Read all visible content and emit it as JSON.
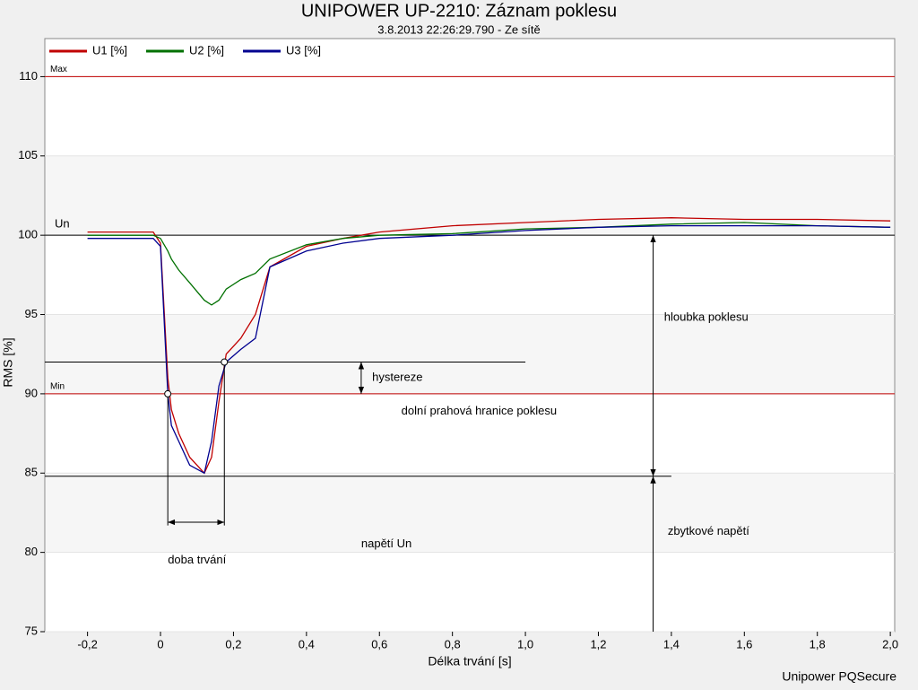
{
  "chart_data": {
    "type": "line",
    "title": "UNIPOWER UP-2210: Záznam poklesu",
    "subtitle": "3.8.2013 22:26:29.790 - Ze sítě",
    "xlabel": "Délka trvání [s]",
    "ylabel": "RMS  [%]",
    "footer": "Unipower PQSecure",
    "xlim": [
      -0.317,
      2.012
    ],
    "ylim": [
      75,
      112.4
    ],
    "xticks": [
      {
        "value": -0.2,
        "label": "-0,2"
      },
      0,
      {
        "value": 0.2,
        "label": "0,2"
      },
      {
        "value": 0.4,
        "label": "0,4"
      },
      {
        "value": 0.6,
        "label": "0,6"
      },
      {
        "value": 0.8,
        "label": "0,8"
      },
      {
        "value": 1.0,
        "label": "1,0"
      },
      {
        "value": 1.2,
        "label": "1,2"
      },
      {
        "value": 1.4,
        "label": "1,4"
      },
      {
        "value": 1.6,
        "label": "1,6"
      },
      {
        "value": 1.8,
        "label": "1,8"
      },
      {
        "value": 2.0,
        "label": "2,0"
      }
    ],
    "yticks": [
      75,
      80,
      85,
      90,
      95,
      100,
      105,
      110
    ],
    "grid": true,
    "legend": "top-left",
    "x": [
      -0.2,
      -0.02,
      0,
      0.02,
      0.03,
      0.05,
      0.08,
      0.12,
      0.14,
      0.16,
      0.18,
      0.22,
      0.26,
      0.3,
      0.4,
      0.5,
      0.6,
      0.8,
      1.0,
      1.2,
      1.4,
      1.6,
      1.8,
      2.0
    ],
    "series": [
      {
        "name": "U1 [%]",
        "color": "#c00000",
        "values": [
          100.2,
          100.2,
          99.5,
          91,
          89,
          87.5,
          86,
          85,
          86,
          89.5,
          92.5,
          93.5,
          95,
          98,
          99.3,
          99.8,
          100.2,
          100.6,
          100.8,
          101.0,
          101.1,
          101.0,
          101.0,
          100.9
        ]
      },
      {
        "name": "U2 [%]",
        "color": "#007000",
        "values": [
          100.0,
          100.0,
          99.8,
          99,
          98.5,
          97.8,
          97,
          95.9,
          95.6,
          95.9,
          96.6,
          97.2,
          97.6,
          98.5,
          99.4,
          99.8,
          100.0,
          100.1,
          100.4,
          100.5,
          100.7,
          100.8,
          100.6,
          100.5
        ]
      },
      {
        "name": "U3 [%]",
        "color": "#000090",
        "values": [
          99.8,
          99.8,
          99.3,
          90,
          88,
          87,
          85.5,
          85,
          87,
          90.5,
          92,
          92.8,
          93.5,
          98,
          99,
          99.5,
          99.8,
          100.0,
          100.3,
          100.5,
          100.6,
          100.6,
          100.6,
          100.5
        ]
      }
    ],
    "reference_lines": [
      {
        "label": "Max",
        "value": 110,
        "color": "#c00000"
      },
      {
        "label": "Un",
        "value": 100,
        "color": "#000000"
      },
      {
        "label": "Min",
        "value": 90,
        "color": "#c00000"
      }
    ],
    "dip": {
      "start": 0.02,
      "end": 0.175,
      "hysteresis_level": 92,
      "residual": 84.8
    },
    "annotations": {
      "hysteresis": "hystereze",
      "threshold": "dolní prahová hranice poklesu",
      "depth": "hloubka poklesu",
      "residual": "zbytkové napětí",
      "nominal": "napětí Un",
      "duration": "doba trvání"
    }
  }
}
